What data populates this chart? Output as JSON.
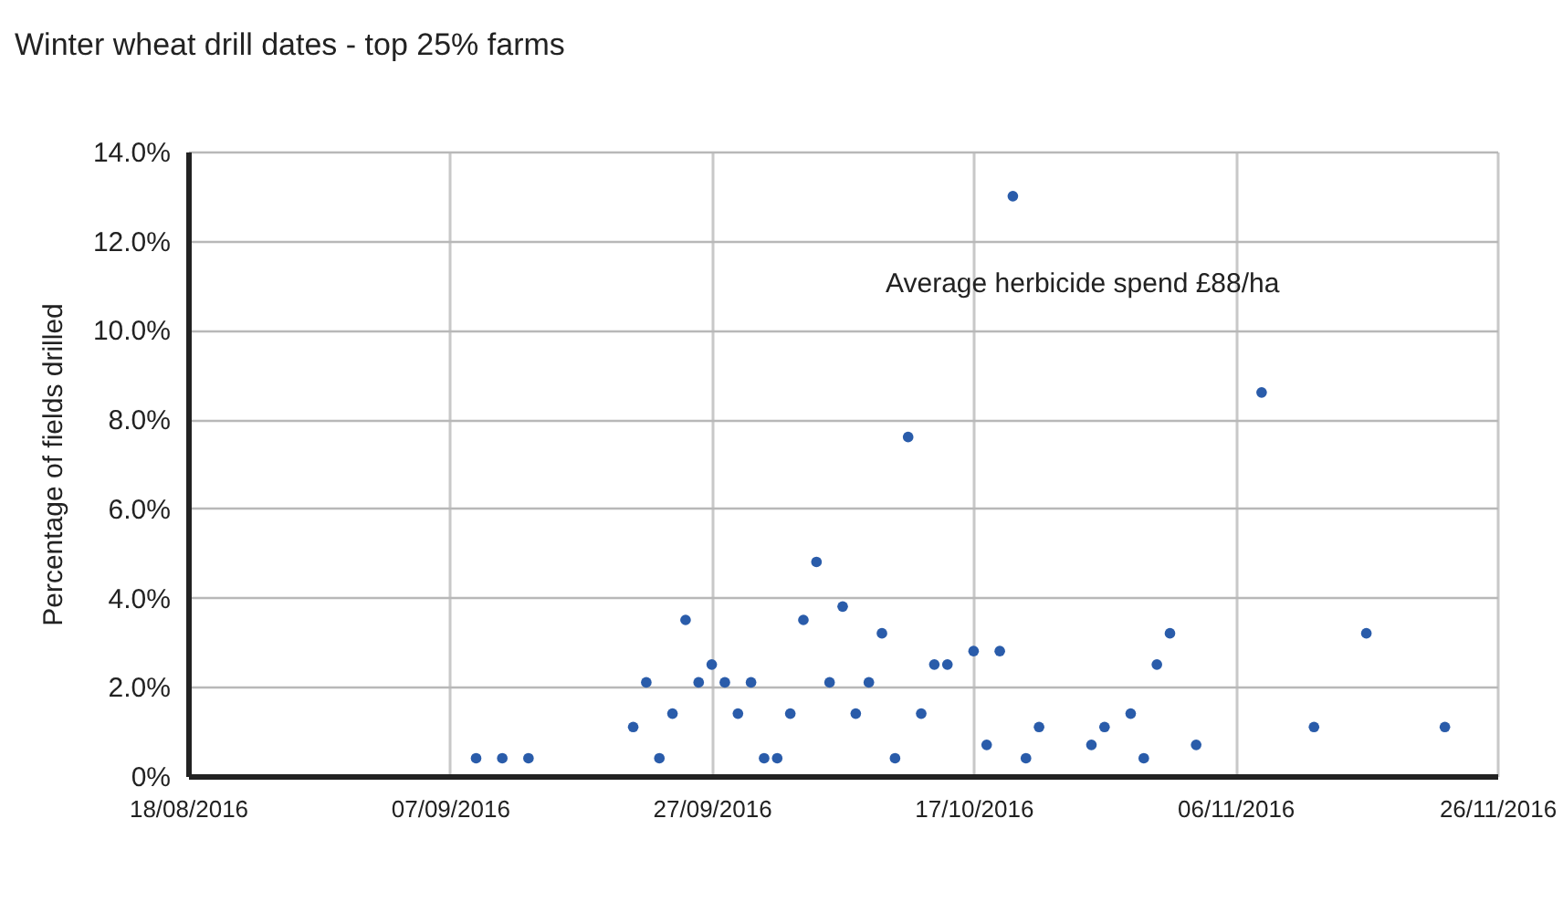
{
  "chart_data": {
    "type": "scatter",
    "title": "Winter wheat drill dates - top 25% farms",
    "ylabel": "Percentage of fields drilled",
    "annotations": [
      "Average herbicide spend £88/ha"
    ],
    "x": [
      "2016-09-09",
      "2016-09-11",
      "2016-09-13",
      "2016-09-21",
      "2016-09-22",
      "2016-09-23",
      "2016-09-24",
      "2016-09-25",
      "2016-09-26",
      "2016-09-27",
      "2016-09-28",
      "2016-09-29",
      "2016-09-30",
      "2016-10-01",
      "2016-10-02",
      "2016-10-03",
      "2016-10-04",
      "2016-10-05",
      "2016-10-06",
      "2016-10-07",
      "2016-10-08",
      "2016-10-09",
      "2016-10-10",
      "2016-10-11",
      "2016-10-12",
      "2016-10-13",
      "2016-10-14",
      "2016-10-15",
      "2016-10-17",
      "2016-10-18",
      "2016-10-19",
      "2016-10-20",
      "2016-10-21",
      "2016-10-22",
      "2016-10-26",
      "2016-10-27",
      "2016-10-29",
      "2016-10-30",
      "2016-10-31",
      "2016-11-01",
      "2016-11-03",
      "2016-11-08",
      "2016-11-12",
      "2016-11-16",
      "2016-11-22"
    ],
    "series": [
      {
        "color": "#2a5caa",
        "values": [
          0.4,
          0.4,
          0.4,
          1.1,
          2.1,
          0.4,
          1.4,
          3.5,
          2.1,
          2.5,
          2.1,
          1.4,
          2.1,
          0.4,
          0.4,
          1.4,
          3.5,
          4.8,
          2.1,
          3.8,
          1.4,
          2.1,
          3.2,
          0.4,
          7.6,
          1.4,
          2.5,
          2.5,
          2.8,
          0.7,
          2.8,
          13.0,
          0.4,
          1.1,
          0.7,
          1.1,
          1.4,
          0.4,
          2.5,
          3.2,
          0.7,
          8.6,
          1.1,
          3.2,
          1.1
        ]
      }
    ],
    "marker": "circle",
    "grid": true,
    "xlim": [
      "2016-08-18",
      "2016-11-26"
    ],
    "xticks": [
      {
        "value": "2016-08-18",
        "label": "18/08/2016"
      },
      {
        "value": "2016-09-07",
        "label": "07/09/2016"
      },
      {
        "value": "2016-09-27",
        "label": "27/09/2016"
      },
      {
        "value": "2016-10-17",
        "label": "17/10/2016"
      },
      {
        "value": "2016-11-06",
        "label": "06/11/2016"
      },
      {
        "value": "2016-11-26",
        "label": "26/11/2016"
      }
    ],
    "ylim": [
      0,
      14
    ],
    "yticks": [
      {
        "value": 0,
        "label": "0%"
      },
      {
        "value": 2,
        "label": "2.0%"
      },
      {
        "value": 4,
        "label": "4.0%"
      },
      {
        "value": 6,
        "label": "6.0%"
      },
      {
        "value": 8,
        "label": "8.0%"
      },
      {
        "value": 10,
        "label": "10.0%"
      },
      {
        "value": 12,
        "label": "12.0%"
      },
      {
        "value": 14,
        "label": "14.0%"
      }
    ]
  }
}
